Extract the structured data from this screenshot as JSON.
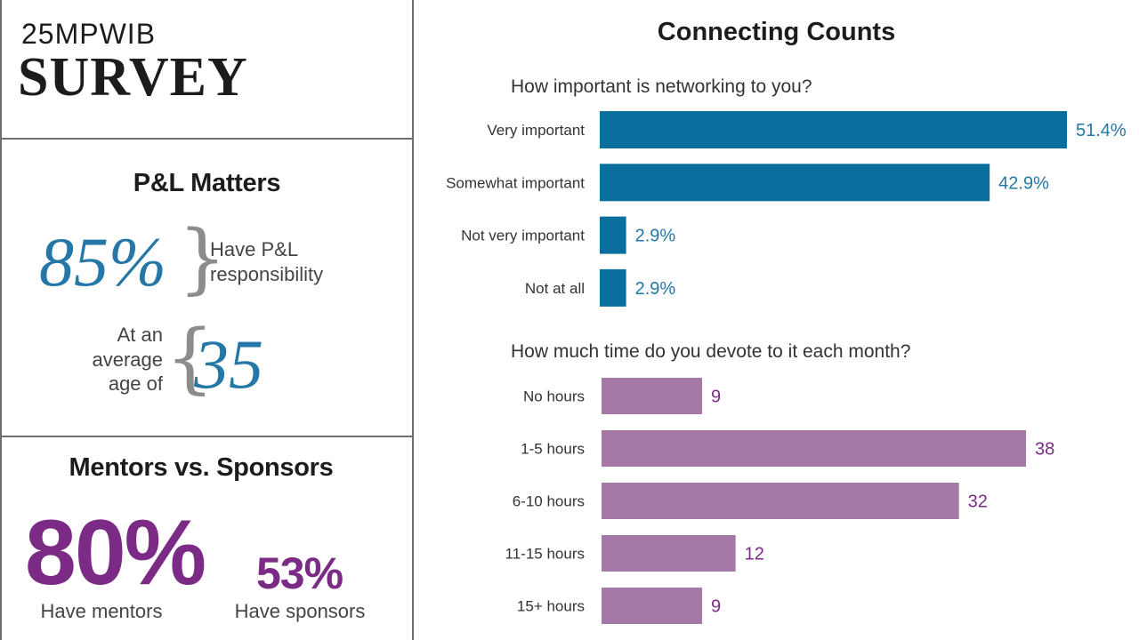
{
  "brand": {
    "line1": "25MPWIB",
    "line2": "SURVEY"
  },
  "pl": {
    "title": "P&L Matters",
    "pct": "85%",
    "pct_label_1": "Have P&L",
    "pct_label_2": "responsibility",
    "age_label_1": "At an",
    "age_label_2": "average",
    "age_label_3": "age of",
    "age": "35"
  },
  "mentors": {
    "title": "Mentors vs. Sponsors",
    "mentors_pct": "80%",
    "mentors_label": "Have mentors",
    "sponsors_pct": "53%",
    "sponsors_label": "Have sponsors"
  },
  "colors": {
    "blue": "#0a6e9e",
    "purple": "#a678a6",
    "purple_text": "#7b2b85",
    "blue_text": "#2477a6"
  },
  "chart_data": [
    {
      "type": "bar",
      "orientation": "horizontal",
      "title": "Connecting Counts",
      "subtitle": "How important is networking to you?",
      "categories": [
        "Very important",
        "Somewhat important",
        "Not very important",
        "Not at all"
      ],
      "values": [
        51.4,
        42.9,
        2.9,
        2.9
      ],
      "labels": [
        "51.4%",
        "42.9%",
        "2.9%",
        "2.9%"
      ],
      "unit": "%",
      "color": "#0a6e9e"
    },
    {
      "type": "bar",
      "orientation": "horizontal",
      "subtitle": "How much time do you devote to it each month?",
      "categories": [
        "No hours",
        "1-5 hours",
        "6-10 hours",
        "11-15 hours",
        "15+ hours"
      ],
      "values": [
        9,
        38,
        32,
        12,
        9
      ],
      "labels": [
        "9",
        "38",
        "32",
        "12",
        "9"
      ],
      "color": "#a678a6"
    }
  ]
}
